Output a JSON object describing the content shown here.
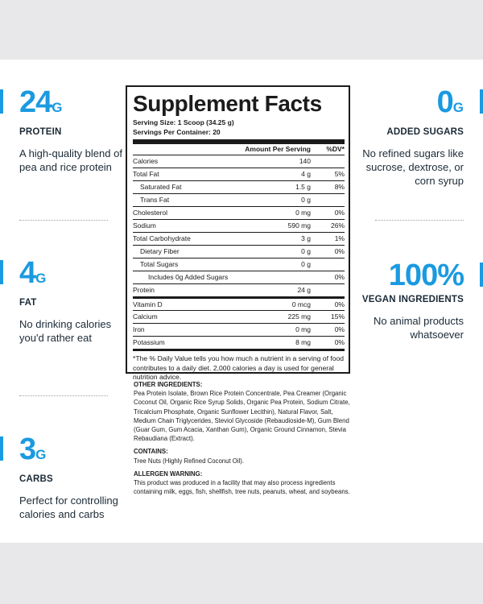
{
  "stats": {
    "protein": {
      "value": "24",
      "unit": "G",
      "label": "PROTEIN",
      "desc": "A high-quality blend of pea and rice protein"
    },
    "fat": {
      "value": "4",
      "unit": "G",
      "label": "FAT",
      "desc": "No drinking calories you'd rather eat"
    },
    "carbs": {
      "value": "3",
      "unit": "G",
      "label": "CARBS",
      "desc": "Perfect for controlling calories and carbs"
    },
    "sugars": {
      "value": "0",
      "unit": "G",
      "label": "ADDED SUGARS",
      "desc": "No refined sugars like sucrose, dextrose, or corn syrup"
    },
    "vegan": {
      "value": "100%",
      "unit": "",
      "label": "VEGAN INGREDIENTS",
      "desc": "No animal products whatsoever"
    }
  },
  "facts": {
    "title": "Supplement Facts",
    "serving_size": "Serving Size: 1 Scoop (34.25 g)",
    "servings_per": "Servings Per Container: 20",
    "col_amount": "Amount Per Serving",
    "col_dv": "%DV*",
    "rows": [
      {
        "name": "Calories",
        "amount": "140",
        "dv": ""
      },
      {
        "name": "Total Fat",
        "amount": "4 g",
        "dv": "5%"
      },
      {
        "name": "Saturated Fat",
        "amount": "1.5 g",
        "dv": "8%"
      },
      {
        "name": "Trans Fat",
        "amount": "0 g",
        "dv": ""
      },
      {
        "name": "Cholesterol",
        "amount": "0 mg",
        "dv": "0%"
      },
      {
        "name": "Sodium",
        "amount": "590 mg",
        "dv": "26%"
      },
      {
        "name": "Total Carbohydrate",
        "amount": "3 g",
        "dv": "1%"
      },
      {
        "name": "Dietary Fiber",
        "amount": "0 g",
        "dv": "0%"
      },
      {
        "name": "Total Sugars",
        "amount": "0 g",
        "dv": ""
      },
      {
        "name": "Includes 0g Added Sugars",
        "amount": "",
        "dv": "0%"
      },
      {
        "name": "Protein",
        "amount": "24 g",
        "dv": ""
      },
      {
        "name": "Vitamin D",
        "amount": "0 mcg",
        "dv": "0%"
      },
      {
        "name": "Calcium",
        "amount": "225 mg",
        "dv": "15%"
      },
      {
        "name": "Iron",
        "amount": "0 mg",
        "dv": "0%"
      },
      {
        "name": "Potassium",
        "amount": "8 mg",
        "dv": "0%"
      }
    ],
    "footnote": "*The % Daily Value tells you how much a nutrient in a serving of food contributes to a daily diet. 2,000 calories a day is used for general nutrition advice."
  },
  "ingredients": {
    "other_heading": "OTHER INGREDIENTS:",
    "other_text": "Pea Protein Isolate, Brown Rice Protein Concentrate, Pea Creamer (Organic Coconut Oil, Organic Rice Syrup Solids, Organic Pea Protein, Sodium Citrate, Tricalcium Phosphate, Organic Sunflower Lecithin), Natural Flavor, Salt, Medium Chain Triglycerides, Steviol Glycoside (Rebaudioside-M), Gum Blend (Guar Gum, Gum Acacia, Xanthan Gum), Organic Ground Cinnamon, Stevia Rebaudiana (Extract).",
    "contains_heading": "CONTAINS:",
    "contains_text": "Tree Nuts (Highly Refined Coconut Oil).",
    "allergen_heading": "ALLERGEN WARNING:",
    "allergen_text": "This product was produced in a facility that may also process ingredients containing milk, eggs, fish, shellfish, tree nuts, peanuts, wheat, and soybeans."
  },
  "colors": {
    "accent": "#1a9ae0",
    "text": "#1b2a36",
    "background": "#e8e8ea"
  }
}
